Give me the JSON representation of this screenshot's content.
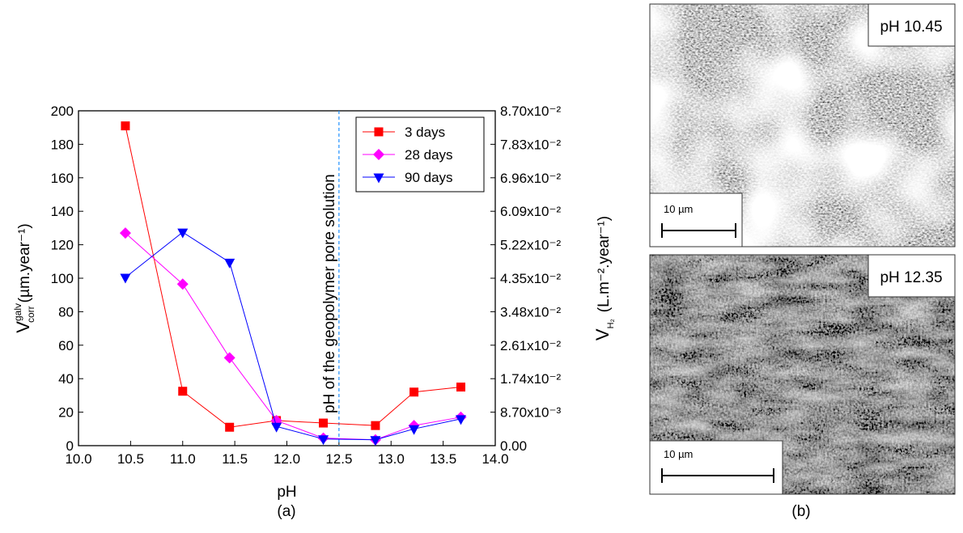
{
  "chart_data": {
    "type": "line",
    "xlabel": "pH",
    "ylabel": {
      "main": "V",
      "sup": "galv",
      "sub": "corr",
      "unit": "(µm.year⁻¹)"
    },
    "y2label": {
      "main": "V",
      "sub": "H₂",
      "unit": "(L.m⁻².year⁻¹)"
    },
    "annotation": {
      "text": "pH of the geopolymer pore solution",
      "x": 12.5
    },
    "x": [
      10.45,
      11.0,
      11.45,
      11.9,
      12.35,
      12.85,
      13.22,
      13.67
    ],
    "series": [
      {
        "name": "3 days",
        "color": "#ff0000",
        "marker": "square",
        "values": [
          191,
          32.5,
          11,
          15,
          13.5,
          12,
          32,
          35
        ]
      },
      {
        "name": "28 days",
        "color": "#ff00ff",
        "marker": "diamond",
        "values": [
          127,
          96.5,
          52.5,
          15,
          4.5,
          3.5,
          12,
          17
        ]
      },
      {
        "name": "90 days",
        "color": "#0000ff",
        "marker": "triangle-down",
        "values": [
          100.5,
          127.5,
          109.5,
          11.5,
          4,
          3.5,
          10,
          16
        ]
      }
    ],
    "xlim": [
      10,
      14
    ],
    "xticks": [
      {
        "value": 10,
        "label": "10.0"
      },
      10.5,
      {
        "value": 11,
        "label": "11.0"
      },
      11.5,
      {
        "value": 12,
        "label": "12.0"
      },
      12.5,
      {
        "value": 13,
        "label": "13.0"
      },
      13.5,
      {
        "value": 14,
        "label": "14.0"
      }
    ],
    "ylim": [
      0,
      200
    ],
    "yticks": [
      0,
      20,
      40,
      60,
      80,
      100,
      120,
      140,
      160,
      180,
      200
    ],
    "y2lim": [
      0,
      0.087
    ],
    "y2ticks": [
      {
        "value": 0,
        "label": "0.00"
      },
      {
        "value": 0.0087,
        "label": "8.70x10⁻³"
      },
      {
        "value": 0.0174,
        "label": "1.74x10⁻²"
      },
      {
        "value": 0.0261,
        "label": "2.61x10⁻²"
      },
      {
        "value": 0.0348,
        "label": "3.48x10⁻²"
      },
      {
        "value": 0.0435,
        "label": "4.35x10⁻²"
      },
      {
        "value": 0.0522,
        "label": "5.22x10⁻²"
      },
      {
        "value": 0.0609,
        "label": "6.09x10⁻²"
      },
      {
        "value": 0.0696,
        "label": "6.96x10⁻²"
      },
      {
        "value": 0.0783,
        "label": "7.83x10⁻²"
      },
      {
        "value": 0.087,
        "label": "8.70x10⁻²"
      }
    ],
    "legend": "top-right"
  },
  "captions": {
    "a": "(a)",
    "b": "(b)"
  },
  "panels": [
    {
      "label": "pH 10.45",
      "scale": "10 µm"
    },
    {
      "label": "pH 12.35",
      "scale": "10 µm"
    }
  ]
}
